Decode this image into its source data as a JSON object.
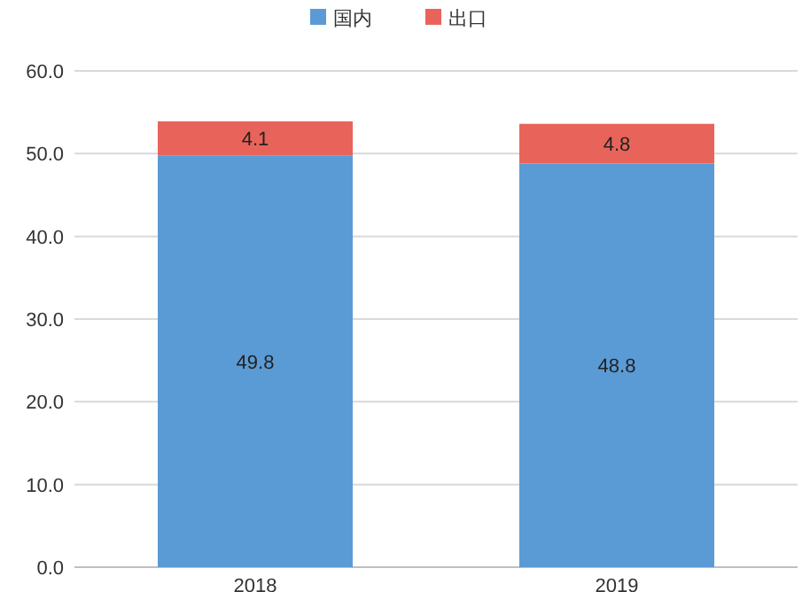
{
  "chart_data": {
    "type": "bar",
    "stacked": true,
    "categories": [
      "2018",
      "2019"
    ],
    "series": [
      {
        "name": "国内",
        "color": "#5b9bd5",
        "values": [
          49.8,
          48.8
        ]
      },
      {
        "name": "出口",
        "color": "#e8645a",
        "values": [
          4.1,
          4.8
        ]
      }
    ],
    "ylim": [
      0,
      60
    ],
    "yticks": [
      {
        "value": 0,
        "label": "0.0"
      },
      {
        "value": 10,
        "label": "10.0"
      },
      {
        "value": 20,
        "label": "20.0"
      },
      {
        "value": 30,
        "label": "30.0"
      },
      {
        "value": 40,
        "label": "40.0"
      },
      {
        "value": 50,
        "label": "50.0"
      },
      {
        "value": 60,
        "label": "60.0"
      }
    ],
    "grid": "y",
    "legend": "top",
    "data_labels": true
  }
}
